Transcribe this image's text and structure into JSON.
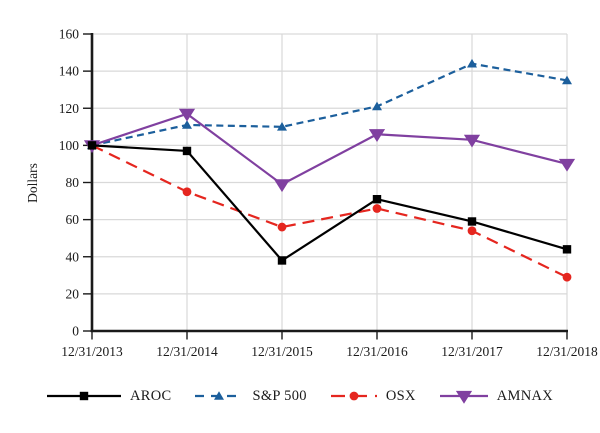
{
  "chart_data": {
    "type": "line",
    "title": "",
    "xlabel": "",
    "ylabel": "Dollars",
    "ylim": [
      0,
      160
    ],
    "ytick_step": 20,
    "grid": true,
    "legend_position": "bottom",
    "categories": [
      "12/31/2013",
      "12/31/2014",
      "12/31/2015",
      "12/31/2016",
      "12/31/2017",
      "12/31/2018"
    ],
    "series": [
      {
        "name": "AROC",
        "color": "#000000",
        "line_style": "solid",
        "marker": "square",
        "values": [
          100,
          97,
          38,
          71,
          59,
          44
        ]
      },
      {
        "name": "S&P 500",
        "color": "#1c5f9c",
        "line_style": "dashed",
        "marker": "triangle-up",
        "values": [
          100,
          111,
          110,
          121,
          144,
          135
        ]
      },
      {
        "name": "OSX",
        "color": "#e5261f",
        "line_style": "long-dash",
        "marker": "circle",
        "values": [
          100,
          75,
          56,
          66,
          54,
          29
        ]
      },
      {
        "name": "AMNAX",
        "color": "#8040a0",
        "line_style": "solid",
        "marker": "triangle-down",
        "values": [
          100,
          117,
          79,
          106,
          103,
          90
        ]
      }
    ],
    "colors": {
      "grid": "#d9d9d9",
      "axis": "#1a1a1a",
      "text": "#1a1a1a",
      "background": "#ffffff"
    }
  }
}
